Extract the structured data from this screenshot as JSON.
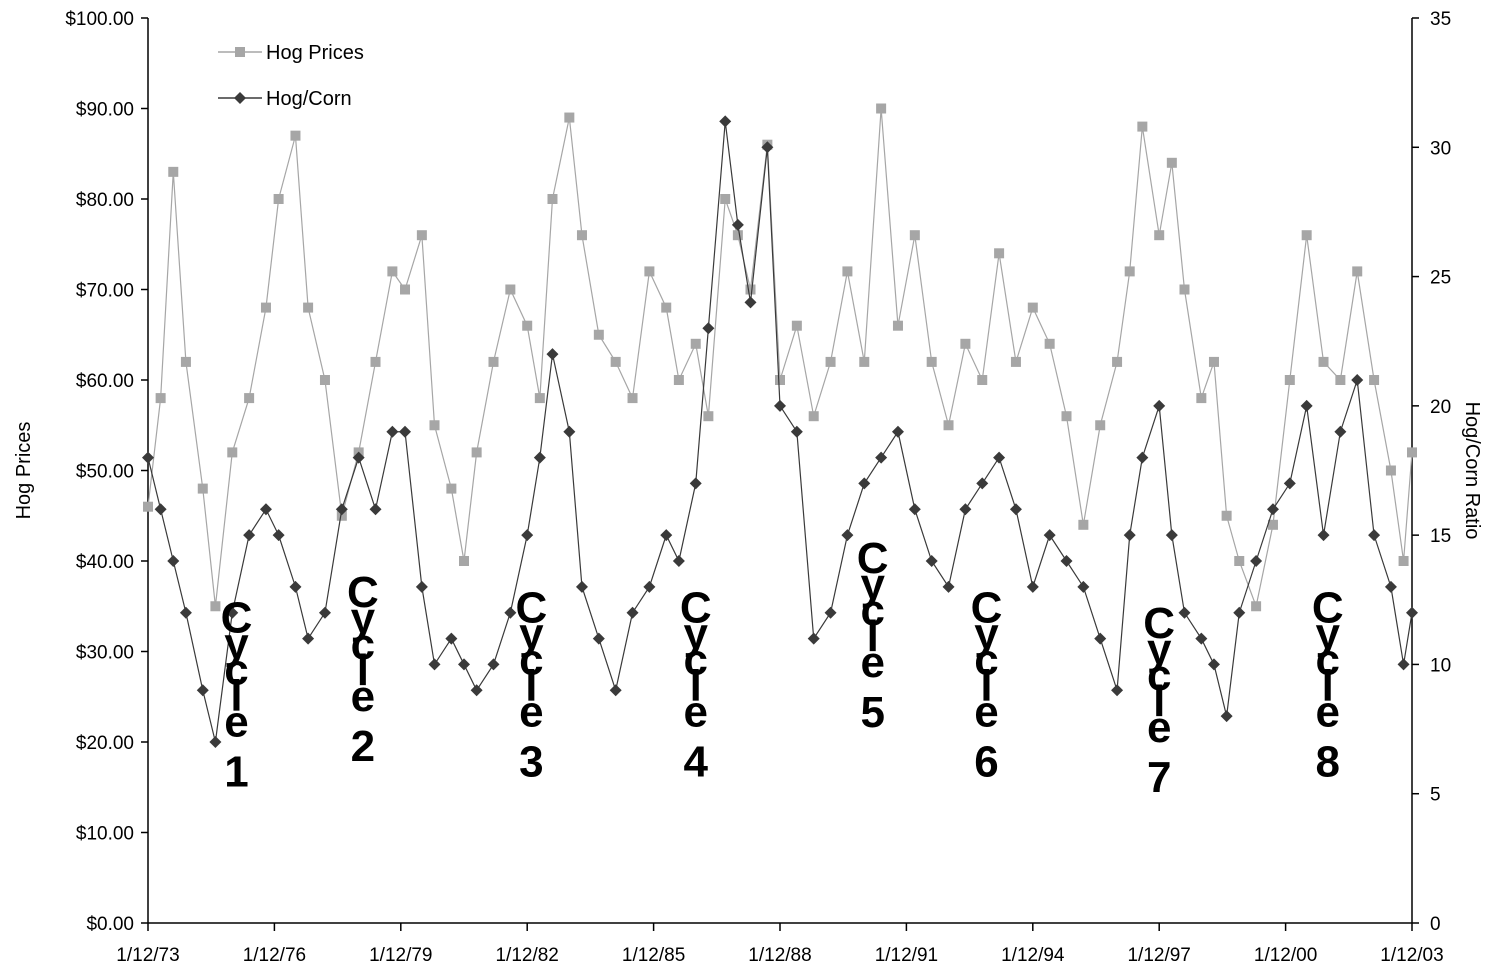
{
  "chart_data": {
    "type": "line",
    "x_ticks": [
      "1/12/73",
      "1/12/76",
      "1/12/79",
      "1/12/82",
      "1/12/85",
      "1/12/88",
      "1/12/91",
      "1/12/94",
      "1/12/97",
      "1/12/00",
      "1/12/03"
    ],
    "xlim": [
      1973.0,
      2003.0
    ],
    "y_left": {
      "label": "Hog Prices",
      "ylim": [
        0,
        100
      ],
      "ticks": [
        "$0.00",
        "$10.00",
        "$20.00",
        "$30.00",
        "$40.00",
        "$50.00",
        "$60.00",
        "$70.00",
        "$80.00",
        "$90.00",
        "$100.00"
      ]
    },
    "y_right": {
      "label": "Hog/Corn Ratio",
      "ylim": [
        0,
        35
      ],
      "ticks": [
        "0",
        "5",
        "10",
        "15",
        "20",
        "25",
        "30",
        "35"
      ]
    },
    "legend_position": "top-left",
    "grid": false,
    "series": [
      {
        "name": "Hog Prices",
        "axis": "left",
        "color": "#a6a6a6",
        "marker": "square",
        "x": [
          1973.0,
          1973.3,
          1973.6,
          1973.9,
          1974.3,
          1974.6,
          1975.0,
          1975.4,
          1975.8,
          1976.1,
          1976.5,
          1976.8,
          1977.2,
          1977.6,
          1978.0,
          1978.4,
          1978.8,
          1979.1,
          1979.5,
          1979.8,
          1980.2,
          1980.5,
          1980.8,
          1981.2,
          1981.6,
          1982.0,
          1982.3,
          1982.6,
          1983.0,
          1983.3,
          1983.7,
          1984.1,
          1984.5,
          1984.9,
          1985.3,
          1985.6,
          1986.0,
          1986.3,
          1986.7,
          1987.0,
          1987.3,
          1987.7,
          1988.0,
          1988.4,
          1988.8,
          1989.2,
          1989.6,
          1990.0,
          1990.4,
          1990.8,
          1991.2,
          1991.6,
          1992.0,
          1992.4,
          1992.8,
          1993.2,
          1993.6,
          1994.0,
          1994.4,
          1994.8,
          1995.2,
          1995.6,
          1996.0,
          1996.3,
          1996.6,
          1997.0,
          1997.3,
          1997.6,
          1998.0,
          1998.3,
          1998.6,
          1998.9,
          1999.3,
          1999.7,
          2000.1,
          2000.5,
          2000.9,
          2001.3,
          2001.7,
          2002.1,
          2002.5,
          2002.8,
          2003.0
        ],
        "values": [
          46,
          58,
          83,
          62,
          48,
          35,
          52,
          58,
          68,
          80,
          87,
          68,
          60,
          45,
          52,
          62,
          72,
          70,
          76,
          55,
          48,
          40,
          52,
          62,
          70,
          66,
          58,
          80,
          89,
          76,
          65,
          62,
          58,
          72,
          68,
          60,
          64,
          56,
          80,
          76,
          70,
          86,
          60,
          66,
          56,
          62,
          72,
          62,
          90,
          66,
          76,
          62,
          55,
          64,
          60,
          74,
          62,
          68,
          64,
          56,
          44,
          55,
          62,
          72,
          88,
          76,
          84,
          70,
          58,
          62,
          45,
          40,
          35,
          44,
          60,
          76,
          62,
          60,
          72,
          60,
          50,
          40,
          52
        ]
      },
      {
        "name": "Hog/Corn",
        "axis": "right",
        "color": "#3a3a3a",
        "marker": "diamond",
        "x": [
          1973.0,
          1973.3,
          1973.6,
          1973.9,
          1974.3,
          1974.6,
          1975.0,
          1975.4,
          1975.8,
          1976.1,
          1976.5,
          1976.8,
          1977.2,
          1977.6,
          1978.0,
          1978.4,
          1978.8,
          1979.1,
          1979.5,
          1979.8,
          1980.2,
          1980.5,
          1980.8,
          1981.2,
          1981.6,
          1982.0,
          1982.3,
          1982.6,
          1983.0,
          1983.3,
          1983.7,
          1984.1,
          1984.5,
          1984.9,
          1985.3,
          1985.6,
          1986.0,
          1986.3,
          1986.7,
          1987.0,
          1987.3,
          1987.7,
          1988.0,
          1988.4,
          1988.8,
          1989.2,
          1989.6,
          1990.0,
          1990.4,
          1990.8,
          1991.2,
          1991.6,
          1992.0,
          1992.4,
          1992.8,
          1993.2,
          1993.6,
          1994.0,
          1994.4,
          1994.8,
          1995.2,
          1995.6,
          1996.0,
          1996.3,
          1996.6,
          1997.0,
          1997.3,
          1997.6,
          1998.0,
          1998.3,
          1998.6,
          1998.9,
          1999.3,
          1999.7,
          2000.1,
          2000.5,
          2000.9,
          2001.3,
          2001.7,
          2002.1,
          2002.5,
          2002.8,
          2003.0
        ],
        "values": [
          18,
          16,
          14,
          12,
          9,
          7,
          12,
          15,
          16,
          15,
          13,
          11,
          12,
          16,
          18,
          16,
          19,
          19,
          13,
          10,
          11,
          10,
          9,
          10,
          12,
          15,
          18,
          22,
          19,
          13,
          11,
          9,
          12,
          13,
          15,
          14,
          17,
          23,
          31,
          27,
          24,
          30,
          20,
          19,
          11,
          12,
          15,
          17,
          18,
          19,
          16,
          14,
          13,
          16,
          17,
          18,
          16,
          13,
          15,
          14,
          13,
          11,
          9,
          15,
          18,
          20,
          15,
          12,
          11,
          10,
          8,
          12,
          14,
          16,
          17,
          20,
          15,
          19,
          21,
          15,
          13,
          10,
          12
        ]
      }
    ],
    "annotations": [
      {
        "label": "Cycle",
        "number": "1",
        "x": 1975.1,
        "top": 12.0
      },
      {
        "label": "Cycle",
        "number": "2",
        "x": 1978.1,
        "top": 13.0
      },
      {
        "label": "Cycle",
        "number": "3",
        "x": 1982.1,
        "top": 12.4
      },
      {
        "label": "Cycle",
        "number": "4",
        "x": 1986.0,
        "top": 12.4
      },
      {
        "label": "Cycle",
        "number": "5",
        "x": 1990.2,
        "top": 14.3
      },
      {
        "label": "Cycle",
        "number": "6",
        "x": 1992.9,
        "top": 12.4
      },
      {
        "label": "Cycle",
        "number": "7",
        "x": 1997.0,
        "top": 11.8
      },
      {
        "label": "Cycle",
        "number": "8",
        "x": 2001.0,
        "top": 12.4
      }
    ]
  }
}
